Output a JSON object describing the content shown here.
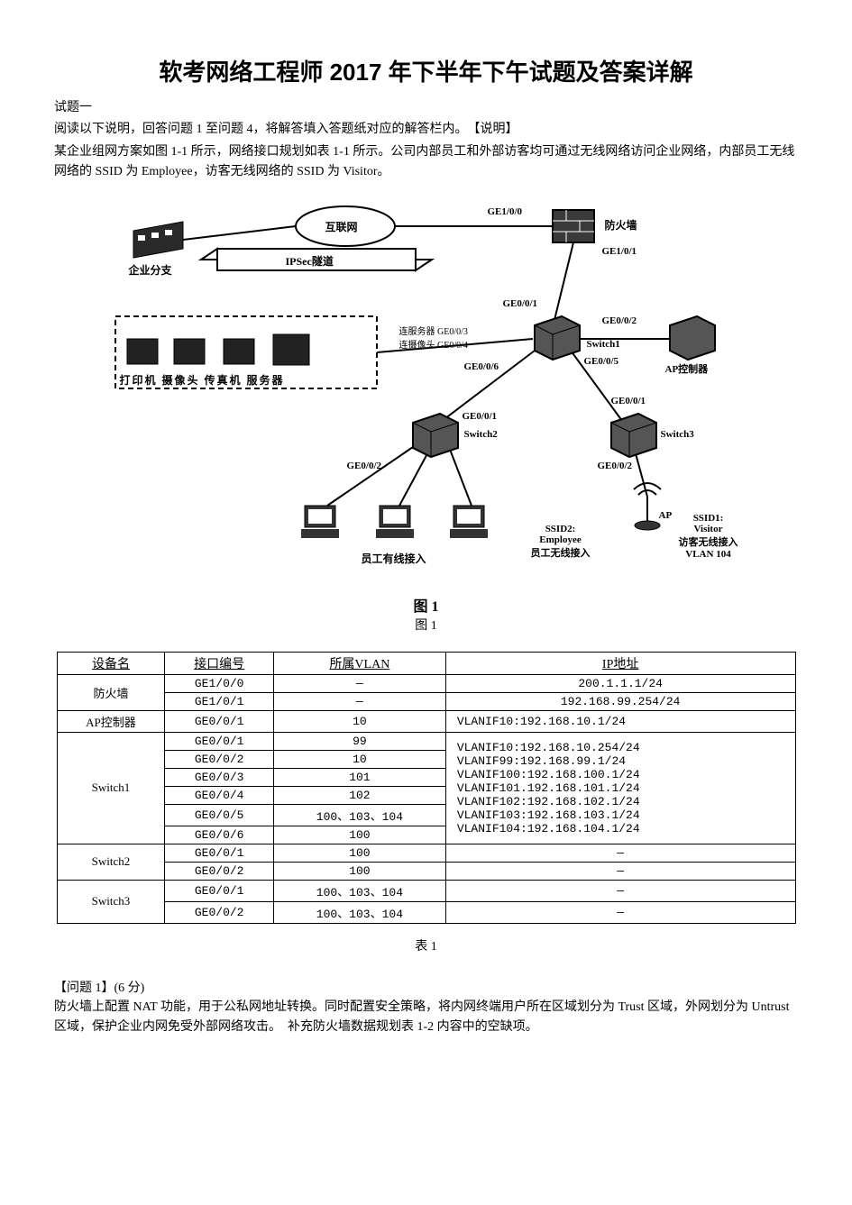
{
  "title": "软考网络工程师 2017 年下半年下午试题及答案详解",
  "intro": {
    "l1": "试题一",
    "l2": "阅读以下说明，回答问题 1 至问题 4，将解答填入答题纸对应的解答栏内。　【说明】",
    "l3": "某企业组网方案如图 1-1 所示，网络接口规划如表 1-1 所示。公司内部员工和外部访客均可通过无线网络访问企业网络，内部员工无线网络的 SSID 为 Employee，访客无线网络的 SSID 为 Visitor。"
  },
  "diagram": {
    "internet": "互联网",
    "ipsec": "IPSec隧道",
    "branch": "企业分支",
    "firewall": "防火墙",
    "ge100": "GE1/0/0",
    "ge101": "GE1/0/1",
    "ge001": "GE0/0/1",
    "ge002": "GE0/0/2",
    "ge003_4": "连服务器 GE0/0/3\n连摄像头 GE0/0/4",
    "ge005": "GE0/0/5",
    "ge006": "GE0/0/6",
    "switch1": "Switch1",
    "switch2": "Switch2",
    "switch3": "Switch3",
    "apctrl": "AP控制器",
    "devices_row": "打印机  摄像头  传真机  服务器",
    "wired": "员工有线接入",
    "ssid2": "SSID2:\nEmployee\n员工无线接入",
    "ssid1": "SSID1:\nVisitor\n访客无线接入\nVLAN 104",
    "ap": "AP",
    "ge002b": "GE0/0/2",
    "ge001b": "GE0/0/1",
    "ge001c": "GE0/0/1",
    "ge002c": "GE0/0/2",
    "caption_bold": "图 1",
    "caption_small": "图 1"
  },
  "table": {
    "headers": [
      "设备名",
      "接口编号",
      "所属VLAN",
      "IP地址"
    ],
    "rows": [
      {
        "dev": "防火墙",
        "devspan": 2,
        "iface": "GE1/0/0",
        "vlan": "—",
        "ip": "200.1.1.1/24",
        "ipcenter": true
      },
      {
        "iface": "GE1/0/1",
        "vlan": "—",
        "ip": "192.168.99.254/24",
        "ipcenter": true
      },
      {
        "dev": "AP控制器",
        "devspan": 1,
        "iface": "GE0/0/1",
        "vlan": "10",
        "ip": "VLANIF10:192.168.10.1/24"
      },
      {
        "dev": "Switch1",
        "devspan": 6,
        "iface": "GE0/0/1",
        "vlan": "99",
        "ipspan": 6,
        "iplines": [
          "VLANIF10:192.168.10.254/24",
          "VLANIF99:192.168.99.1/24",
          "VLANIF100:192.168.100.1/24",
          "VLANIF101.192.168.101.1/24",
          "VLANIF102:192.168.102.1/24",
          "VLANIF103:192.168.103.1/24",
          "VLANIF104:192.168.104.1/24"
        ]
      },
      {
        "iface": "GE0/0/2",
        "vlan": "10"
      },
      {
        "iface": "GE0/0/3",
        "vlan": "101"
      },
      {
        "iface": "GE0/0/4",
        "vlan": "102"
      },
      {
        "iface": "GE0/0/5",
        "vlan": "100、103、104"
      },
      {
        "iface": "GE0/0/6",
        "vlan": "100"
      },
      {
        "dev": "Switch2",
        "devspan": 2,
        "iface": "GE0/0/1",
        "vlan": "100",
        "ip": "—",
        "ipcenter": true
      },
      {
        "iface": "GE0/0/2",
        "vlan": "100",
        "ip": "—",
        "ipcenter": true
      },
      {
        "dev": "Switch3",
        "devspan": 2,
        "iface": "GE0/0/1",
        "vlan": "100、103、104",
        "ip": "—",
        "ipcenter": true
      },
      {
        "iface": "GE0/0/2",
        "vlan": "100、103、104",
        "ip": "—",
        "ipcenter": true
      }
    ],
    "caption": "表 1"
  },
  "q1": {
    "head": "【问题 1】(6 分)",
    "body": "防火墙上配置 NAT 功能，用于公私网地址转换。同时配置安全策略，将内网终端用户所在区域划分为 Trust 区域，外网划分为 Untrust 区域，保护企业内网免受外部网络攻击。　补充防火墙数据规划表 1-2 内容中的空缺项。"
  }
}
